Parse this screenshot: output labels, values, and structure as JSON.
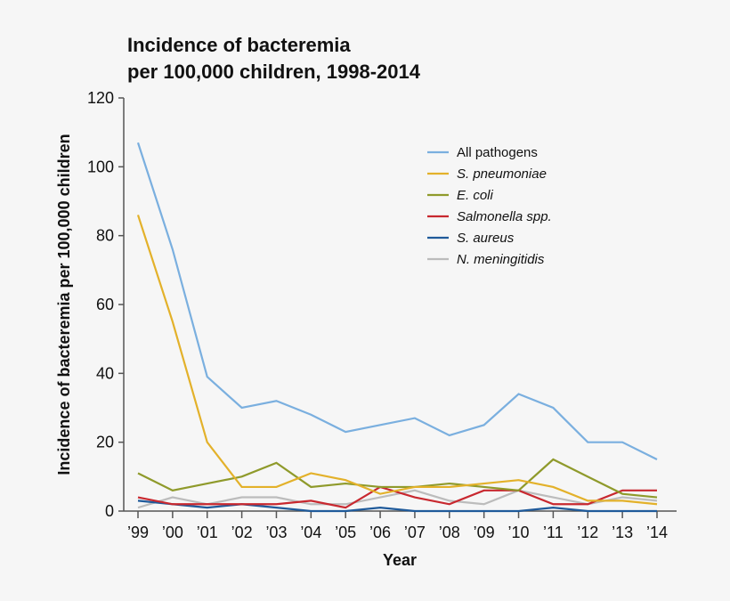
{
  "chart_data": {
    "type": "line",
    "title": [
      "Incidence of bacteremia",
      "per 100,000 children, 1998-2014"
    ],
    "xlabel": "Year",
    "ylabel": "Incidence of bacteremia per 100,000 children",
    "ylim": [
      0,
      120
    ],
    "yticks": [
      0,
      20,
      40,
      60,
      80,
      100,
      120
    ],
    "categories": [
      "’99",
      "’00",
      "’01",
      "’02",
      "’03",
      "’04",
      "’05",
      "’06",
      "’07",
      "’08",
      "’09",
      "’10",
      "’11",
      "’12",
      "’13",
      "’14"
    ],
    "grid": false,
    "legend_placement": "top-right",
    "series": [
      {
        "name": "All pathogens",
        "italic": false,
        "color": "#7aafdf",
        "values": [
          107,
          76,
          39,
          30,
          32,
          28,
          23,
          25,
          27,
          22,
          25,
          34,
          30,
          20,
          20,
          15
        ]
      },
      {
        "name": "S. pneumoniae",
        "italic": true,
        "color": "#e3b12a",
        "values": [
          86,
          55,
          20,
          7,
          7,
          11,
          9,
          5,
          7,
          7,
          8,
          9,
          7,
          3,
          3,
          2
        ]
      },
      {
        "name": "E. coli",
        "italic": true,
        "color": "#8f9a2b",
        "values": [
          11,
          6,
          8,
          10,
          14,
          7,
          8,
          7,
          7,
          8,
          7,
          6,
          15,
          10,
          5,
          4
        ]
      },
      {
        "name": "Salmonella spp.",
        "italic": true,
        "color": "#c8282f",
        "values": [
          4,
          2,
          2,
          2,
          2,
          3,
          1,
          7,
          4,
          2,
          6,
          6,
          2,
          2,
          6,
          6
        ]
      },
      {
        "name": "S. aureus",
        "italic": true,
        "color": "#1f5a9a",
        "values": [
          3,
          2,
          1,
          2,
          1,
          0,
          0,
          1,
          0,
          0,
          0,
          0,
          1,
          0,
          0,
          0
        ]
      },
      {
        "name": "N. meningitidis",
        "italic": true,
        "color": "#bcbcbc",
        "values": [
          1,
          4,
          2,
          4,
          4,
          2,
          2,
          4,
          6,
          3,
          2,
          6,
          4,
          2,
          4,
          3
        ]
      }
    ]
  }
}
